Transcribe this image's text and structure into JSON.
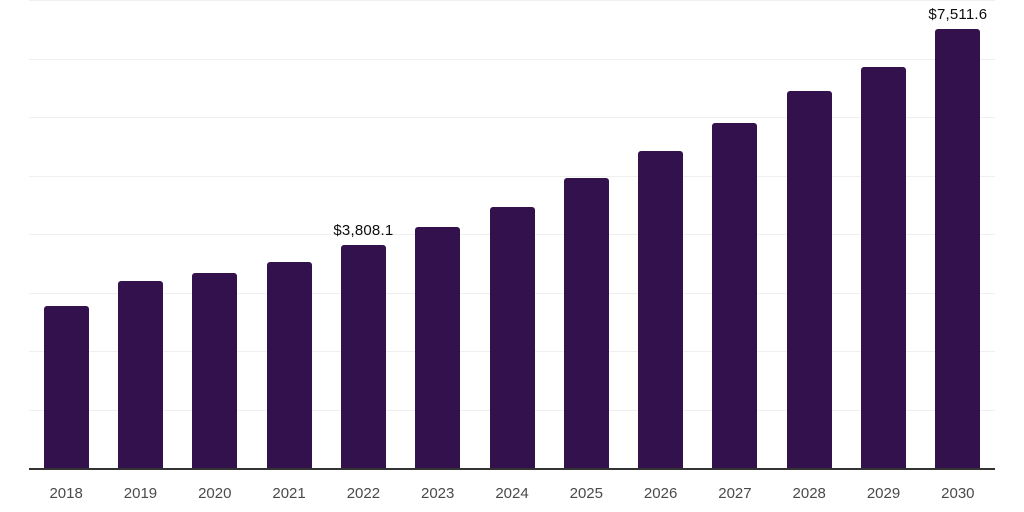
{
  "chart_data": {
    "type": "bar",
    "title": "",
    "xlabel": "",
    "ylabel": "",
    "categories": [
      "2018",
      "2019",
      "2020",
      "2021",
      "2022",
      "2023",
      "2024",
      "2025",
      "2026",
      "2027",
      "2028",
      "2029",
      "2030"
    ],
    "values": [
      2770,
      3205,
      3330,
      3530,
      3808.1,
      4125,
      4470,
      4950,
      5420,
      5895,
      6440,
      6850,
      7511.6
    ],
    "data_labels": [
      "",
      "",
      "",
      "",
      "$3,808.1",
      "",
      "",
      "",
      "",
      "",
      "",
      "",
      "$7,511.6"
    ],
    "ylim": [
      0,
      8000
    ],
    "gridline_step": 1000,
    "grid": true,
    "legend": false
  },
  "colors": {
    "background": "#ffffff",
    "bar": "#33114d",
    "gridline": "#efefef",
    "axis_line": "#333333",
    "tick_label": "#4a4a4a",
    "data_label": "#0d0d0d"
  }
}
